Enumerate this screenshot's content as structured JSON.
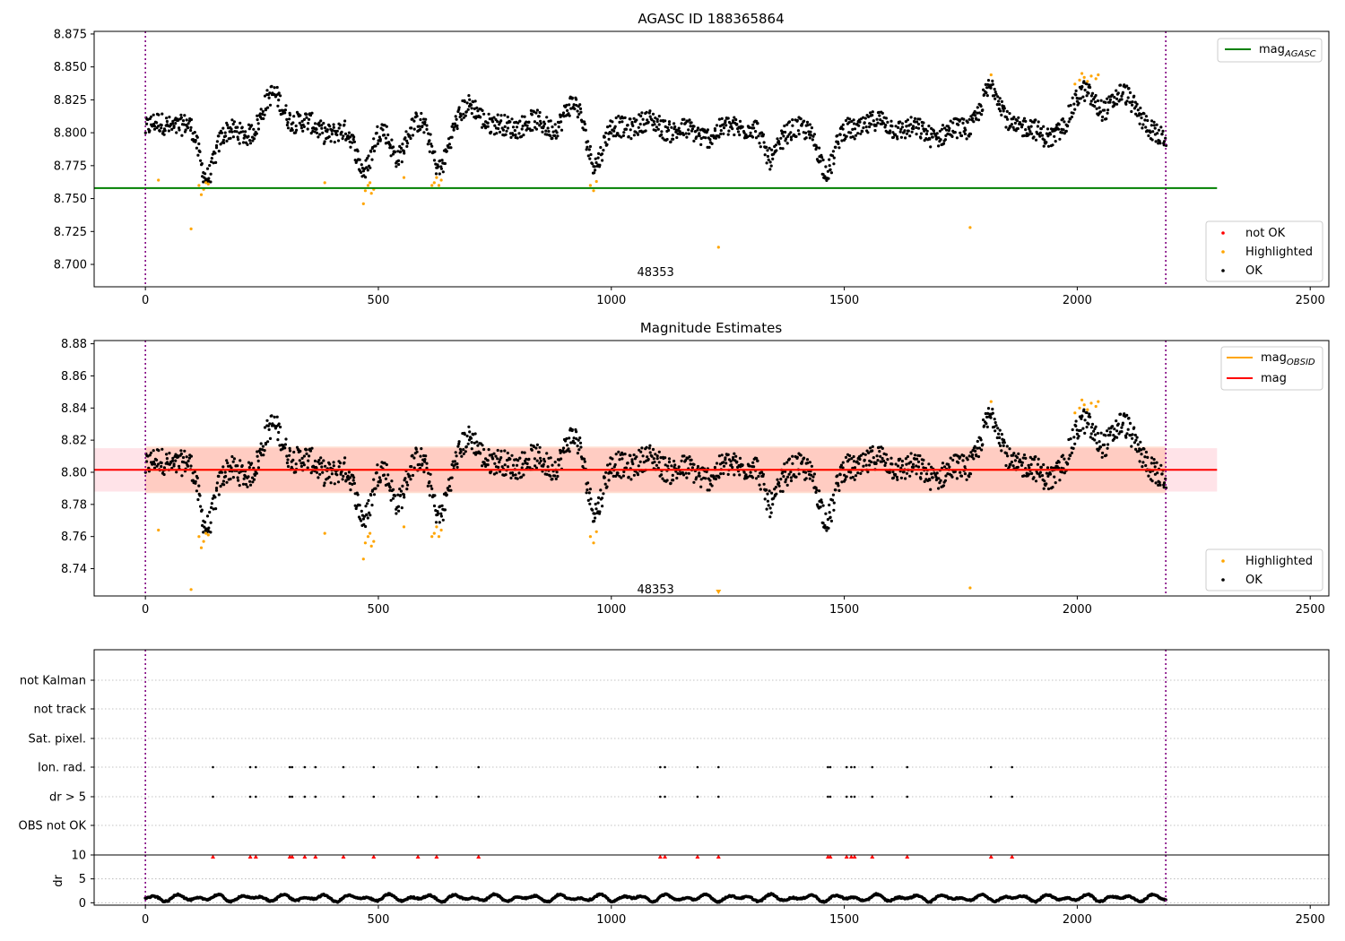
{
  "chart_data": [
    {
      "type": "scatter",
      "title": "AGASC ID 188365864",
      "xlim": [
        -110,
        2540
      ],
      "ylim": [
        8.683,
        8.877
      ],
      "xticks": [
        0,
        500,
        1000,
        1500,
        2000,
        2500
      ],
      "yticks": [
        8.7,
        8.725,
        8.75,
        8.775,
        8.8,
        8.825,
        8.85,
        8.875
      ],
      "vertical_lines": [
        0,
        2190
      ],
      "reference_lines": [
        {
          "name": "mag_AGASC",
          "y": 8.758,
          "x_range": [
            -110,
            2300
          ],
          "color": "#008000"
        }
      ],
      "annotation": {
        "text": "48353",
        "x": 1095,
        "y": 8.694
      },
      "legend_upper": [
        {
          "label": "mag",
          "sub": "AGASC",
          "color": "#008000",
          "style": "line"
        }
      ],
      "legend_lower": [
        {
          "label": "not OK",
          "color": "#ff0000",
          "style": "dot"
        },
        {
          "label": "Highlighted",
          "color": "#ffa500",
          "style": "dot"
        },
        {
          "label": "OK",
          "color": "#000000",
          "style": "dot"
        }
      ],
      "highlighted_points": [
        [
          28,
          8.764
        ],
        [
          98,
          8.727
        ],
        [
          115,
          8.76
        ],
        [
          120,
          8.753
        ],
        [
          125,
          8.757
        ],
        [
          130,
          8.762
        ],
        [
          135,
          8.761
        ],
        [
          385,
          8.762
        ],
        [
          468,
          8.746
        ],
        [
          472,
          8.756
        ],
        [
          478,
          8.76
        ],
        [
          482,
          8.762
        ],
        [
          485,
          8.754
        ],
        [
          490,
          8.757
        ],
        [
          555,
          8.766
        ],
        [
          615,
          8.76
        ],
        [
          620,
          8.762
        ],
        [
          625,
          8.766
        ],
        [
          630,
          8.76
        ],
        [
          635,
          8.764
        ],
        [
          955,
          8.76
        ],
        [
          962,
          8.756
        ],
        [
          968,
          8.763
        ],
        [
          1230,
          8.713
        ],
        [
          1770,
          8.728
        ],
        [
          1815,
          8.844
        ],
        [
          1995,
          8.837
        ],
        [
          2005,
          8.84
        ],
        [
          2010,
          8.845
        ],
        [
          2015,
          8.842
        ],
        [
          2022,
          8.839
        ],
        [
          2030,
          8.843
        ],
        [
          2040,
          8.841
        ],
        [
          2045,
          8.844
        ]
      ],
      "ok_series": {
        "x_range": [
          0,
          2190
        ],
        "baseline": 8.803,
        "noise": 0.008,
        "dips": [
          [
            130,
            8.768
          ],
          [
            470,
            8.777
          ],
          [
            540,
            8.78
          ],
          [
            630,
            8.776
          ],
          [
            965,
            8.78
          ],
          [
            1340,
            8.775
          ],
          [
            1465,
            8.776
          ]
        ],
        "peaks": [
          [
            275,
            8.825
          ],
          [
            700,
            8.826
          ],
          [
            920,
            8.823
          ],
          [
            1815,
            8.828
          ],
          [
            2015,
            8.834
          ],
          [
            2100,
            8.83
          ]
        ]
      }
    },
    {
      "type": "scatter",
      "title": "Magnitude Estimates",
      "xlim": [
        -110,
        2540
      ],
      "ylim": [
        8.723,
        8.882
      ],
      "xticks": [
        0,
        500,
        1000,
        1500,
        2000,
        2500
      ],
      "yticks": [
        8.74,
        8.76,
        8.78,
        8.8,
        8.82,
        8.84,
        8.86,
        8.88
      ],
      "vertical_lines": [
        0,
        2190
      ],
      "reference_lines": [
        {
          "name": "mag_OBSID",
          "y": 8.8015,
          "x_range": [
            0,
            2190
          ],
          "color": "#ffa500"
        },
        {
          "name": "mag",
          "y": 8.8015,
          "x_range": [
            -110,
            2300
          ],
          "color": "#ff0000"
        }
      ],
      "bands": [
        {
          "y_range": [
            8.788,
            8.815
          ],
          "x_range": [
            -110,
            2300
          ],
          "color": "#ffc0cb",
          "opacity": 0.45
        },
        {
          "y_range": [
            8.787,
            8.816
          ],
          "x_range": [
            0,
            2190
          ],
          "color": "#ffa07a",
          "opacity": 0.35
        }
      ],
      "annotation": {
        "text": "48353",
        "x": 1095,
        "y": 8.727
      },
      "legend_upper": [
        {
          "label": "mag",
          "sub": "OBSID",
          "color": "#ffa500",
          "style": "line"
        },
        {
          "label": "mag",
          "sub": "",
          "color": "#ff0000",
          "style": "line"
        }
      ],
      "legend_lower": [
        {
          "label": "Highlighted",
          "color": "#ffa500",
          "style": "dot"
        },
        {
          "label": "OK",
          "color": "#000000",
          "style": "dot"
        }
      ]
    },
    {
      "type": "event-strip",
      "categories": [
        "OBS not OK",
        "dr > 5",
        "Ion. rad.",
        "Sat. pixel.",
        "not track",
        "not Kalman"
      ],
      "event_times": [
        145,
        225,
        237,
        310,
        315,
        342,
        365,
        425,
        490,
        585,
        625,
        715,
        1105,
        1115,
        1185,
        1230,
        1465,
        1470,
        1505,
        1515,
        1522,
        1560,
        1635,
        1815,
        1860
      ],
      "events_in": [
        "Ion. rad.",
        "dr > 5"
      ],
      "xlim": [
        -110,
        2540
      ],
      "xticks": [
        0,
        500,
        1000,
        1500,
        2000,
        2500
      ],
      "vertical_lines": [
        0,
        2190
      ]
    },
    {
      "type": "scatter",
      "ylabel": "dr",
      "xlim": [
        -110,
        2540
      ],
      "ylim": [
        -0.5,
        10
      ],
      "yticks": [
        0,
        5,
        10
      ],
      "xticks": [
        0,
        500,
        1000,
        1500,
        2000,
        2500
      ],
      "vertical_lines": [
        0,
        2190
      ],
      "flag_markers_at": 10,
      "dr_series": {
        "x_range": [
          0,
          2190
        ],
        "min": 0.1,
        "max": 2.0
      }
    }
  ]
}
